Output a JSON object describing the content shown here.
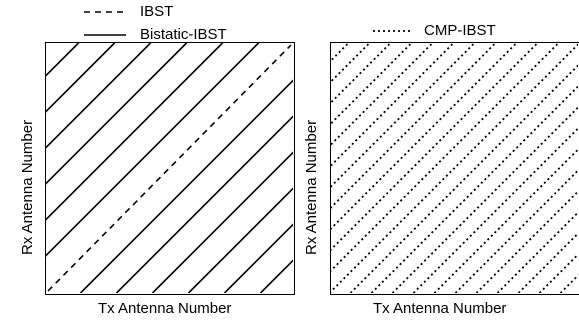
{
  "left_panel": {
    "legend": [
      {
        "label": "IBST",
        "style": "dashed"
      },
      {
        "label": "Bistatic-IBST",
        "style": "solid"
      }
    ],
    "xlabel": "Tx Antenna Number",
    "ylabel": "Rx Antenna Number"
  },
  "right_panel": {
    "legend": [
      {
        "label": "CMP-IBST",
        "style": "dotted"
      }
    ],
    "xlabel": "Tx Antenna Number",
    "ylabel": "Rx Antenna Number"
  }
}
